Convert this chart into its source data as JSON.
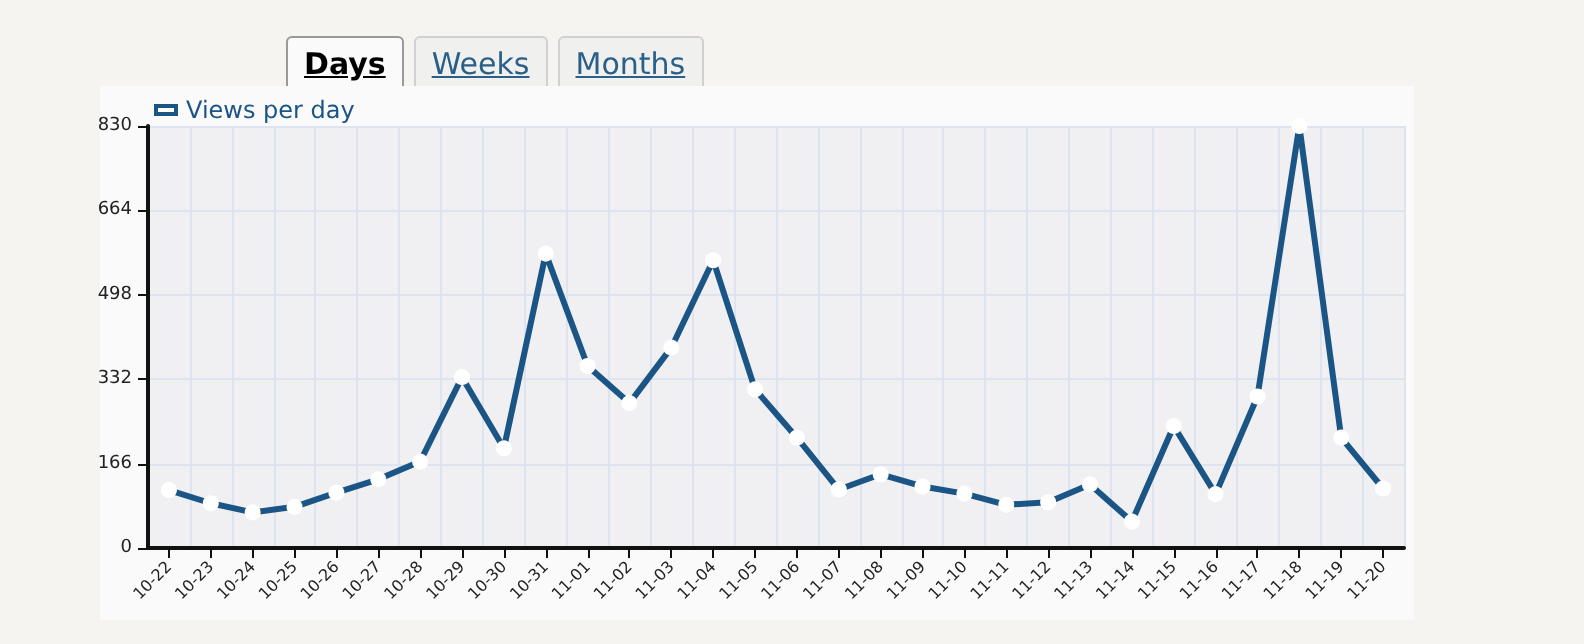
{
  "chart_data": {
    "type": "line",
    "categories": [
      "10-22",
      "10-23",
      "10-24",
      "10-25",
      "10-26",
      "10-27",
      "10-28",
      "10-29",
      "10-30",
      "10-31",
      "11-01",
      "11-02",
      "11-03",
      "11-04",
      "11-05",
      "11-06",
      "11-07",
      "11-08",
      "11-09",
      "11-10",
      "11-11",
      "11-12",
      "11-13",
      "11-14",
      "11-15",
      "11-16",
      "11-17",
      "11-18",
      "11-19",
      "11-20"
    ],
    "series": [
      {
        "name": "Views per day",
        "color": "#1b5585",
        "values": [
          114,
          88,
          70,
          81,
          109,
          135,
          170,
          336,
          196,
          579,
          358,
          285,
          394,
          566,
          312,
          217,
          115,
          145,
          121,
          107,
          85,
          90,
          125,
          52,
          240,
          106,
          298,
          830,
          217,
          117
        ]
      }
    ],
    "ylim": [
      0,
      830
    ],
    "yticks": [
      0,
      166,
      332,
      498,
      664,
      830
    ],
    "annotations": [
      "Days",
      "Weeks",
      "Months"
    ],
    "grid": true,
    "legend": "top left",
    "marker": "circle",
    "line_style": "solid"
  }
}
